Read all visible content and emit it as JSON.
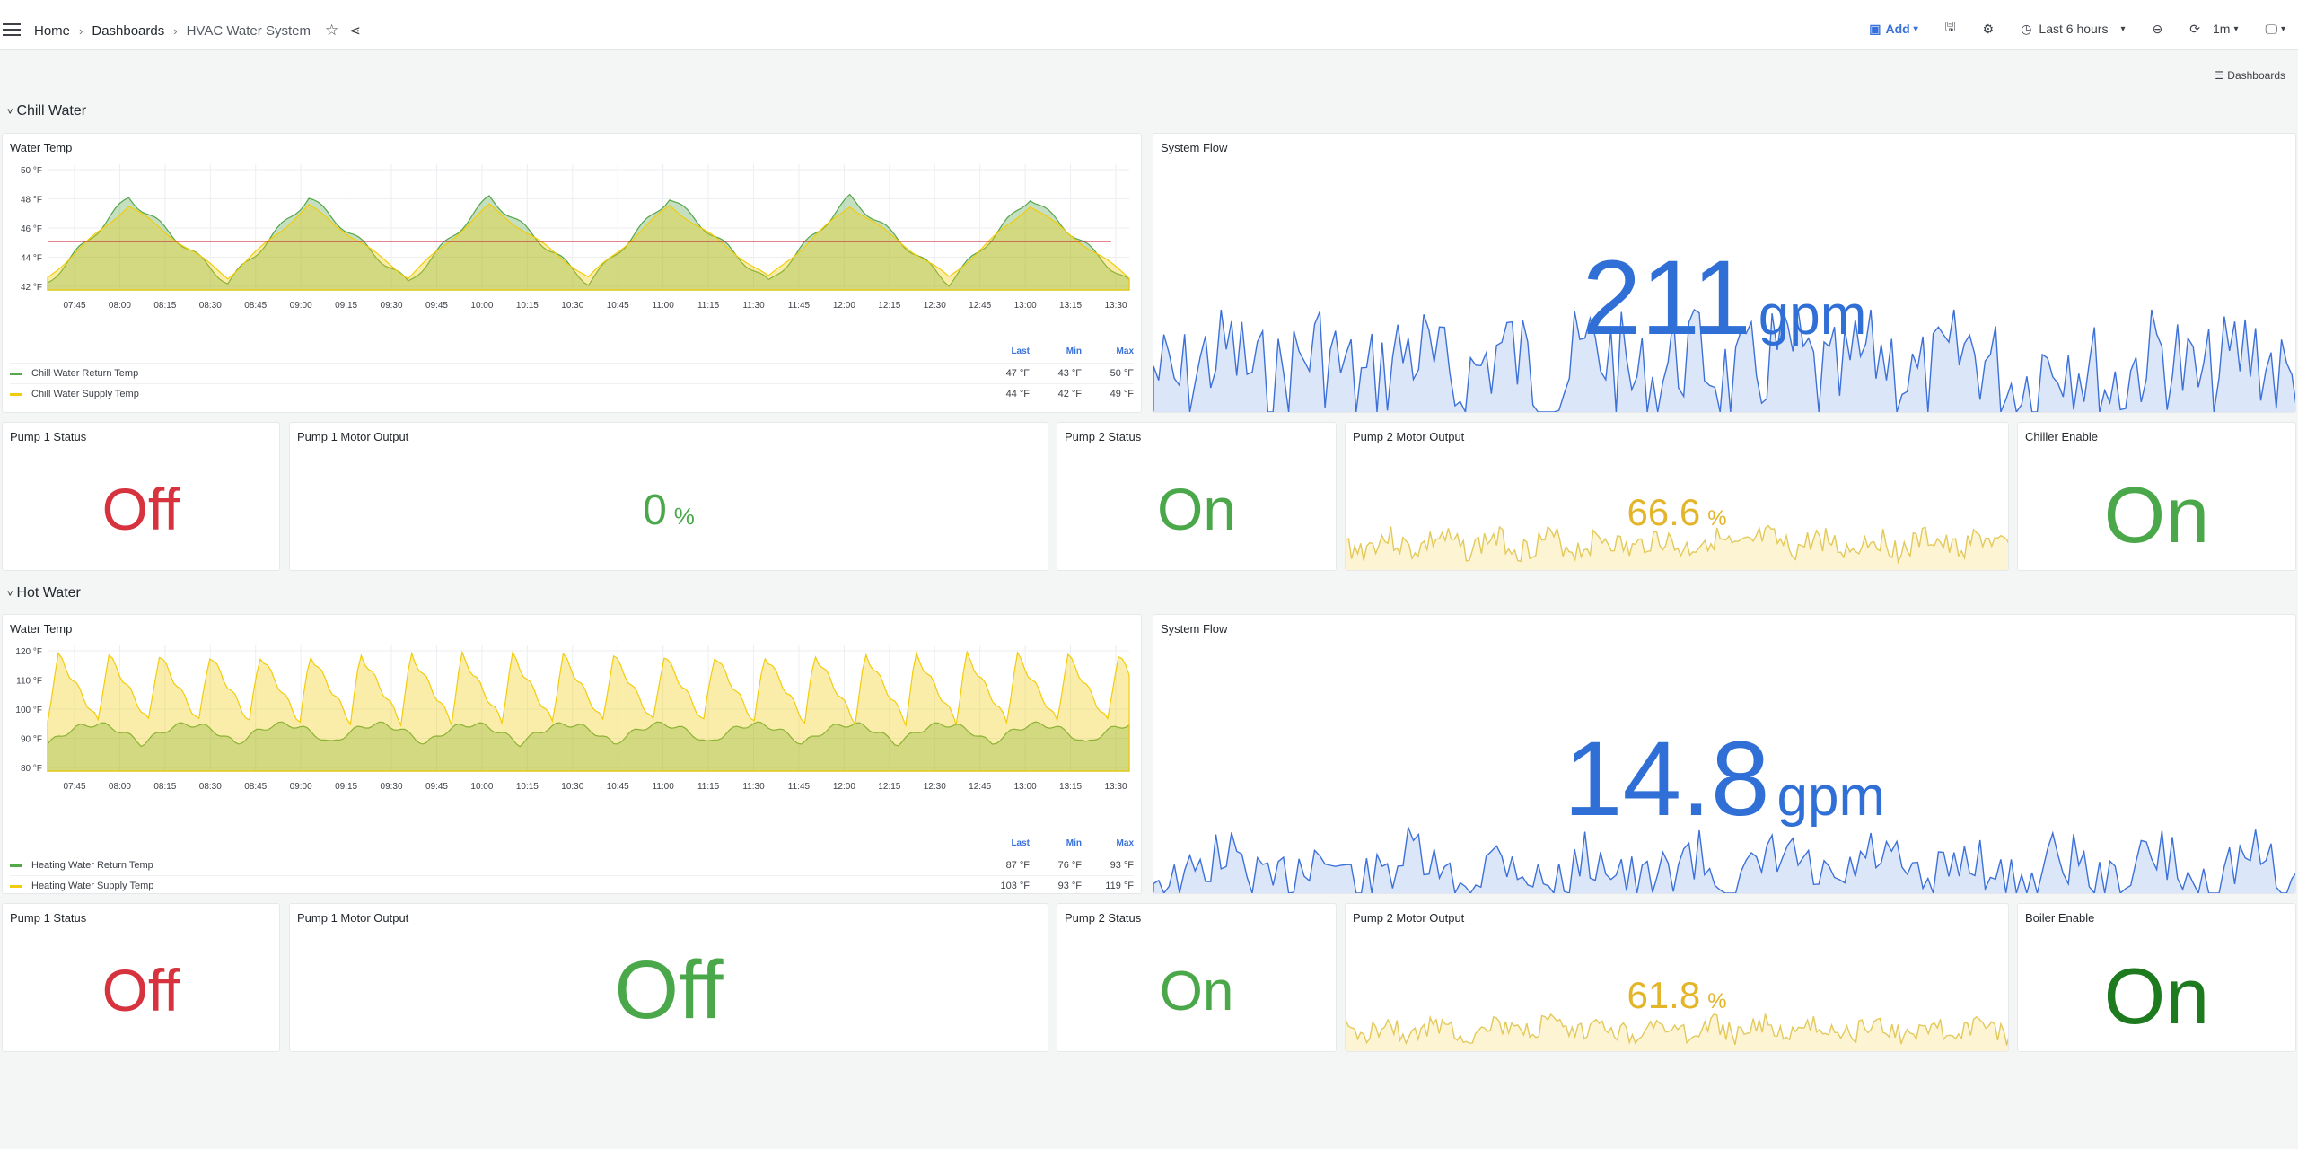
{
  "topbar": {
    "breadcrumb": [
      "Home",
      "Dashboards",
      "HVAC Water System"
    ],
    "add_label": "Add",
    "time_range": "Last 6 hours",
    "refresh_interval": "1m"
  },
  "dashboards_link": "Dashboards",
  "chill": {
    "row_title": "Chill Water",
    "temp_panel": {
      "title": "Water Temp",
      "y_ticks": [
        "50 °F",
        "48 °F",
        "46 °F",
        "44 °F",
        "42 °F"
      ],
      "x_ticks": [
        "07:45",
        "08:00",
        "08:15",
        "08:30",
        "08:45",
        "09:00",
        "09:15",
        "09:30",
        "09:45",
        "10:00",
        "10:15",
        "10:30",
        "10:45",
        "11:00",
        "11:15",
        "11:30",
        "11:45",
        "12:00",
        "12:15",
        "12:30",
        "12:45",
        "13:00",
        "13:15",
        "13:30"
      ],
      "legend_headers": [
        "Last",
        "Min",
        "Max"
      ],
      "series": [
        {
          "name": "Chill Water Return Temp",
          "last": "47 °F",
          "min": "43 °F",
          "max": "50 °F",
          "color": "#56a64b"
        },
        {
          "name": "Chill Water Supply Temp",
          "last": "44 °F",
          "min": "42 °F",
          "max": "49 °F",
          "color": "#f2cc0c"
        }
      ]
    },
    "flow_panel": {
      "title": "System Flow",
      "value": "211",
      "unit": "gpm"
    },
    "pump1_status": {
      "title": "Pump 1 Status",
      "value": "Off"
    },
    "pump1_motor": {
      "title": "Pump 1 Motor Output",
      "value": "0",
      "unit": "%"
    },
    "pump2_status": {
      "title": "Pump 2 Status",
      "value": "On"
    },
    "pump2_motor": {
      "title": "Pump 2 Motor Output",
      "value": "66.6",
      "unit": "%"
    },
    "enable": {
      "title": "Chiller Enable",
      "value": "On"
    }
  },
  "hot": {
    "row_title": "Hot Water",
    "temp_panel": {
      "title": "Water Temp",
      "y_ticks": [
        "120 °F",
        "110 °F",
        "100 °F",
        "90 °F",
        "80 °F"
      ],
      "x_ticks": [
        "07:45",
        "08:00",
        "08:15",
        "08:30",
        "08:45",
        "09:00",
        "09:15",
        "09:30",
        "09:45",
        "10:00",
        "10:15",
        "10:30",
        "10:45",
        "11:00",
        "11:15",
        "11:30",
        "11:45",
        "12:00",
        "12:15",
        "12:30",
        "12:45",
        "13:00",
        "13:15",
        "13:30"
      ],
      "legend_headers": [
        "Last",
        "Min",
        "Max"
      ],
      "series": [
        {
          "name": "Heating Water Return Temp",
          "last": "87 °F",
          "min": "76 °F",
          "max": "93 °F",
          "color": "#56a64b"
        },
        {
          "name": "Heating Water Supply Temp",
          "last": "103 °F",
          "min": "93 °F",
          "max": "119 °F",
          "color": "#f2cc0c"
        }
      ]
    },
    "flow_panel": {
      "title": "System Flow",
      "value": "14.8",
      "unit": "gpm"
    },
    "pump1_status": {
      "title": "Pump 1 Status",
      "value": "Off"
    },
    "pump1_motor": {
      "title": "Pump 1 Motor Output",
      "value": "Off"
    },
    "pump2_status": {
      "title": "Pump 2 Status",
      "value": "On"
    },
    "pump2_motor": {
      "title": "Pump 2 Motor Output",
      "value": "61.8",
      "unit": "%"
    },
    "enable": {
      "title": "Boiler Enable",
      "value": "On"
    }
  }
}
